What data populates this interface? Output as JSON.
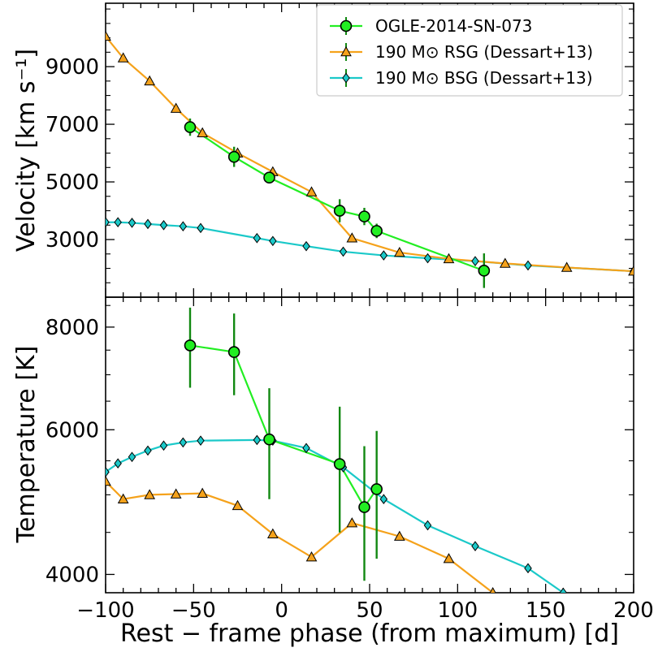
{
  "chart_data": [
    {
      "type": "line",
      "panel": "top",
      "ylabel": "Velocity [km s⁻¹]",
      "xlim": [
        -100,
        200
      ],
      "ylim": [
        1000,
        11200
      ],
      "y_ticks": [
        "3000",
        "5000",
        "7000",
        "9000"
      ],
      "y_tick_values": [
        3000,
        5000,
        7000,
        9000
      ],
      "legend": "top-right",
      "series": [
        {
          "name": "OGLE-2014-SN-073",
          "color": "#22ee22",
          "marker": "circle",
          "x": [
            -52,
            -27,
            -7,
            33,
            47,
            54,
            115
          ],
          "y": [
            6900,
            5870,
            5150,
            4000,
            3800,
            3300,
            1920
          ],
          "err": [
            300,
            350,
            200,
            400,
            300,
            250,
            600
          ]
        },
        {
          "name": "190 M⊙ RSG (Dessart+13)",
          "color": "#f5a21b",
          "marker": "triangle",
          "x": [
            -100,
            -90,
            -75,
            -60,
            -45,
            -25,
            -5,
            17,
            40,
            67,
            95,
            127,
            162,
            200
          ],
          "y": [
            10050,
            9300,
            8500,
            7550,
            6700,
            6000,
            5350,
            4650,
            3050,
            2550,
            2330,
            2170,
            2030,
            1900
          ],
          "err": []
        },
        {
          "name": "190 M⊙ BSG (Dessart+13)",
          "color": "#1bc9c9",
          "marker": "diamond",
          "x": [
            -100,
            -93,
            -85,
            -76,
            -67,
            -56,
            -46,
            -14,
            -5,
            14,
            35,
            58,
            83,
            110,
            140,
            200
          ],
          "y": [
            3600,
            3600,
            3580,
            3540,
            3500,
            3460,
            3400,
            3050,
            2950,
            2770,
            2580,
            2450,
            2350,
            2250,
            2100,
            1900
          ],
          "err": []
        }
      ]
    },
    {
      "type": "line",
      "panel": "bottom",
      "xlabel": "Rest − frame phase (from maximum) [d]",
      "ylabel": "Temperature [K]",
      "xlim": [
        -100,
        200
      ],
      "ylim": [
        3800,
        8700
      ],
      "x_ticks": [
        "−100",
        "−50",
        "0",
        "50",
        "100",
        "150",
        "200"
      ],
      "x_tick_values": [
        -100,
        -50,
        0,
        50,
        100,
        150,
        200
      ],
      "y_ticks": [
        "4000",
        "6000",
        "8000"
      ],
      "y_tick_values": [
        4000,
        6000,
        8000
      ],
      "scale": "log",
      "series": [
        {
          "name": "OGLE-2014-SN-073",
          "color": "#22ee22",
          "marker": "circle",
          "x": [
            -52,
            -27,
            -7,
            33,
            47,
            54
          ],
          "y": [
            7600,
            7460,
            5840,
            5450,
            4830,
            5080
          ],
          "err": [
            850,
            850,
            900,
            950,
            900,
            900
          ]
        },
        {
          "name": "190 M⊙ RSG (Dessart+13)",
          "color": "#f5a21b",
          "marker": "triangle",
          "x": [
            -100,
            -90,
            -75,
            -60,
            -45,
            -25,
            -5,
            17,
            40,
            67,
            95,
            120
          ],
          "y": [
            5190,
            4940,
            5000,
            5010,
            5020,
            4850,
            4480,
            4200,
            4620,
            4450,
            4180,
            3800
          ],
          "err": []
        },
        {
          "name": "190 M⊙ BSG (Dessart+13)",
          "color": "#1bc9c9",
          "marker": "diamond",
          "x": [
            -100,
            -93,
            -85,
            -76,
            -67,
            -56,
            -46,
            -14,
            -5,
            14,
            35,
            58,
            83,
            110,
            140,
            160
          ],
          "y": [
            5330,
            5460,
            5560,
            5660,
            5740,
            5790,
            5820,
            5830,
            5820,
            5700,
            5400,
            4940,
            4590,
            4330,
            4070,
            3800
          ],
          "err": []
        }
      ]
    }
  ]
}
